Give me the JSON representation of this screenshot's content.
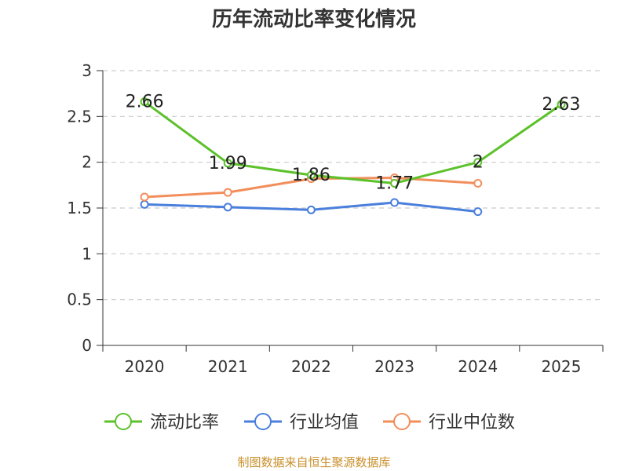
{
  "chart_data": {
    "type": "line",
    "title": "历年流动比率变化情况",
    "categories": [
      "2020",
      "2021",
      "2022",
      "2023",
      "2024",
      "2025"
    ],
    "ylim": [
      0,
      3
    ],
    "yticks": [
      0,
      0.5,
      1,
      1.5,
      2,
      2.5,
      3
    ],
    "ytick_labels": [
      "0",
      "0.5",
      "1",
      "1.5",
      "2",
      "2.5",
      "3"
    ],
    "grid": true,
    "legend_position": "bottom-center",
    "series": [
      {
        "name": "流动比率",
        "color": "#5cc12a",
        "values": [
          2.66,
          1.99,
          1.86,
          1.77,
          2,
          2.63
        ],
        "data_labels": [
          "2.66",
          "1.99",
          "1.86",
          "1.77",
          "2",
          "2.63"
        ]
      },
      {
        "name": "行业均值",
        "color": "#4a7fdc",
        "values": [
          1.54,
          1.51,
          1.48,
          1.56,
          1.46,
          null
        ]
      },
      {
        "name": "行业中位数",
        "color": "#f28e5b",
        "values": [
          1.62,
          1.67,
          1.82,
          1.83,
          1.77,
          null
        ]
      }
    ]
  },
  "footer": {
    "source": "制图数据来自恒生聚源数据库"
  }
}
